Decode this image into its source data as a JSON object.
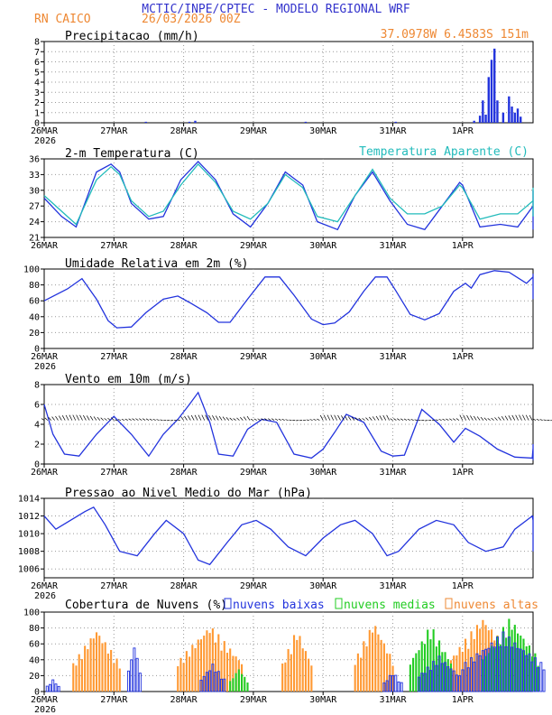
{
  "header": {
    "title": "MCTIC/INPE/CPTEC - MODELO REGIONAL WRF",
    "station": "RN CAICO",
    "run": "26/03/2026 00Z",
    "coords": "37.0978W 6.4583S 151m"
  },
  "colors": {
    "title": "#3333cc",
    "header_orange": "#ee8833",
    "series_blue": "#2233dd",
    "apparent_teal": "#22bbbb",
    "low_cloud": "#2233dd",
    "mid_cloud": "#22cc22",
    "high_cloud": "#ff9933"
  },
  "time_axis": {
    "labels": [
      "26MAR",
      "27MAR",
      "28MAR",
      "29MAR",
      "30MAR",
      "31MAR",
      "1APR"
    ],
    "year": "2026",
    "hours_total": 168
  },
  "chart_data": [
    {
      "id": "precip",
      "type": "bar",
      "title": "Precipitacao (mm/h)",
      "ylim": [
        0,
        8
      ],
      "yticks": [
        "0",
        "1",
        "2",
        "3",
        "4",
        "5",
        "6",
        "7",
        "8"
      ],
      "x_hours": [
        35,
        50,
        52,
        90,
        121,
        148,
        150,
        151,
        152,
        153,
        154,
        155,
        156,
        158,
        160,
        161,
        162,
        163,
        164,
        185,
        186,
        187,
        188,
        189,
        190,
        193,
        194,
        195,
        196,
        207
      ],
      "values": [
        0.1,
        0.1,
        0.2,
        0.1,
        0.1,
        0.2,
        0.7,
        2.2,
        0.8,
        4.5,
        6.2,
        7.3,
        2.2,
        1.0,
        2.6,
        1.6,
        1.0,
        1.4,
        0.6,
        1.3,
        1.6,
        1.2,
        0.8,
        0.3,
        0.2,
        0.5,
        2.6,
        0.8,
        0.9,
        0.1
      ]
    },
    {
      "id": "temperature",
      "type": "line",
      "title": "2-m Temperatura (C)",
      "legend": "Temperatura Aparente (C)",
      "ylim": [
        21,
        36
      ],
      "yticks": [
        "21",
        "24",
        "27",
        "30",
        "33",
        "36"
      ],
      "series": [
        {
          "name": "2-m Temperatura (C)",
          "x": [
            0,
            6,
            11,
            18,
            23,
            26,
            30,
            36,
            41,
            47,
            53,
            59,
            65,
            71,
            77,
            83,
            89,
            94,
            101,
            107,
            113,
            119,
            125,
            131,
            137,
            143,
            144,
            150,
            157,
            163,
            169,
            175,
            181,
            187,
            193,
            199,
            205,
            210
          ],
          "values": [
            28.5,
            25.0,
            23.0,
            33.5,
            35.0,
            33.5,
            27.5,
            24.5,
            25.0,
            32.0,
            35.5,
            32.0,
            25.5,
            23.0,
            27.5,
            33.5,
            31.0,
            24.0,
            22.5,
            29.0,
            33.5,
            28.0,
            23.5,
            22.5,
            27.0,
            31.5,
            31.0,
            23.0,
            23.5,
            23.0,
            27.0,
            23.5,
            22.5,
            23.5,
            29.0,
            30.0,
            28.5,
            26.5
          ]
        },
        {
          "name": "Temperatura Aparente (C)",
          "x": [
            0,
            6,
            11,
            18,
            23,
            26,
            30,
            36,
            41,
            47,
            53,
            59,
            65,
            71,
            77,
            83,
            89,
            94,
            101,
            107,
            113,
            119,
            125,
            131,
            137,
            143,
            144,
            150,
            157,
            163,
            169,
            175,
            181,
            187,
            193,
            199,
            205,
            210
          ],
          "values": [
            29.0,
            26.0,
            23.5,
            32.0,
            34.5,
            33.0,
            28.0,
            25.0,
            26.0,
            31.0,
            35.0,
            31.5,
            26.0,
            24.5,
            27.5,
            33.0,
            30.5,
            25.0,
            24.0,
            29.0,
            34.0,
            28.5,
            25.5,
            25.5,
            27.0,
            31.0,
            30.5,
            24.5,
            25.5,
            25.5,
            28.0,
            25.0,
            25.5,
            25.5,
            30.0,
            30.5,
            30.0,
            29.0
          ]
        }
      ]
    },
    {
      "id": "humidity",
      "type": "line",
      "title": "Umidade Relativa em 2m (%)",
      "ylim": [
        0,
        100
      ],
      "yticks": [
        "0",
        "20",
        "40",
        "60",
        "80",
        "100"
      ],
      "series": [
        {
          "name": "Umidade Relativa em 2m (%)",
          "x": [
            0,
            8,
            13,
            18,
            22,
            25,
            30,
            35,
            41,
            46,
            50,
            56,
            60,
            64,
            70,
            76,
            81,
            86,
            92,
            96,
            100,
            105,
            110,
            114,
            118,
            121,
            126,
            131,
            136,
            141,
            145,
            147,
            150,
            155,
            160,
            166,
            172,
            177,
            182,
            188,
            193,
            198,
            204,
            210
          ],
          "values": [
            60,
            75,
            88,
            62,
            35,
            26,
            27,
            45,
            62,
            66,
            58,
            45,
            33,
            33,
            62,
            90,
            90,
            67,
            37,
            30,
            32,
            46,
            72,
            90,
            90,
            73,
            43,
            36,
            44,
            72,
            82,
            76,
            93,
            98,
            96,
            82,
            90,
            84,
            74,
            77,
            87,
            94,
            62,
            77
          ]
        }
      ]
    },
    {
      "id": "wind",
      "type": "line",
      "title": "Vento em 10m (m/s)",
      "ylim": [
        0,
        8
      ],
      "yticks": [
        "0",
        "2",
        "4",
        "6",
        "8"
      ],
      "barb_line_value": 4.4,
      "series": [
        {
          "name": "Vento em 10m (m/s)",
          "x": [
            0,
            3,
            7,
            12,
            18,
            24,
            30,
            36,
            41,
            46,
            50,
            53,
            57,
            60,
            65,
            70,
            75,
            80,
            86,
            92,
            96,
            100,
            104,
            110,
            116,
            120,
            124,
            130,
            136,
            141,
            145,
            150,
            156,
            162,
            168,
            174,
            180,
            186,
            192,
            198,
            204,
            210
          ],
          "values": [
            6.0,
            3.0,
            1.0,
            0.8,
            3.0,
            4.8,
            3.0,
            0.8,
            3.0,
            4.5,
            6.0,
            7.2,
            4.2,
            1.0,
            0.8,
            3.5,
            4.5,
            4.2,
            1.0,
            0.6,
            1.5,
            3.2,
            5.0,
            4.2,
            1.3,
            0.8,
            0.9,
            5.5,
            4.0,
            2.2,
            3.6,
            2.8,
            1.5,
            0.7,
            0.6,
            1.6,
            1.0,
            2.0,
            1.0,
            0.8,
            1.6,
            0.4
          ]
        }
      ]
    },
    {
      "id": "pressure",
      "type": "line",
      "title": "Pressao ao Nivel Medio do Mar (hPa)",
      "ylim": [
        1005,
        1014
      ],
      "yticks": [
        "1006",
        "1008",
        "1010",
        "1012",
        "1014"
      ],
      "series": [
        {
          "name": "Pressao ao Nivel Medio do Mar (hPa)",
          "x": [
            0,
            4,
            9,
            14,
            17,
            21,
            26,
            32,
            38,
            42,
            48,
            53,
            57,
            63,
            68,
            73,
            78,
            84,
            90,
            96,
            102,
            107,
            113,
            118,
            122,
            129,
            135,
            141,
            146,
            152,
            158,
            162,
            168,
            174,
            180,
            185,
            191,
            197,
            204,
            208,
            210
          ],
          "values": [
            1012.0,
            1010.5,
            1011.5,
            1012.5,
            1013.0,
            1011.0,
            1008.0,
            1007.5,
            1010.0,
            1011.5,
            1010.0,
            1007.0,
            1006.5,
            1009.0,
            1011.0,
            1011.5,
            1010.5,
            1008.5,
            1007.5,
            1009.5,
            1011.0,
            1011.5,
            1010.0,
            1007.5,
            1008.0,
            1010.5,
            1011.5,
            1011.0,
            1009.0,
            1008.0,
            1008.5,
            1010.5,
            1012.0,
            1011.5,
            1009.5,
            1008.0,
            1009.5,
            1012.0,
            1011.0,
            1009.0,
            1010.5
          ]
        }
      ]
    },
    {
      "id": "clouds",
      "type": "bar",
      "title": "Cobertura de Nuvens (%)",
      "ylim": [
        0,
        100
      ],
      "yticks": [
        "0",
        "20",
        "40",
        "60",
        "80",
        "100"
      ],
      "legend": [
        "nuvens baixas",
        "nuvens medias",
        "nuvens altas"
      ],
      "series": [
        {
          "name": "nuvens altas",
          "x_ranges": [
            [
              10,
              26
            ],
            [
              46,
              68
            ],
            [
              82,
              92
            ],
            [
              107,
              120
            ],
            [
              140,
              162
            ],
            [
              178,
              205
            ]
          ],
          "values": [
            80,
            85,
            80,
            90,
            95,
            85
          ]
        },
        {
          "name": "nuvens medias",
          "x_ranges": [
            [
              64,
              70
            ],
            [
              126,
              140
            ],
            [
              151,
              170
            ],
            [
              189,
              210
            ]
          ],
          "values": [
            30,
            85,
            95,
            80
          ]
        },
        {
          "name": "nuvens baixas",
          "x_ranges": [
            [
              1,
              5
            ],
            [
              29,
              33
            ],
            [
              54,
              62
            ],
            [
              117,
              123
            ],
            [
              129,
              143
            ],
            [
              144,
              172
            ],
            [
              186,
              200
            ]
          ],
          "values": [
            15,
            60,
            35,
            25,
            45,
            75,
            70
          ]
        }
      ]
    }
  ]
}
